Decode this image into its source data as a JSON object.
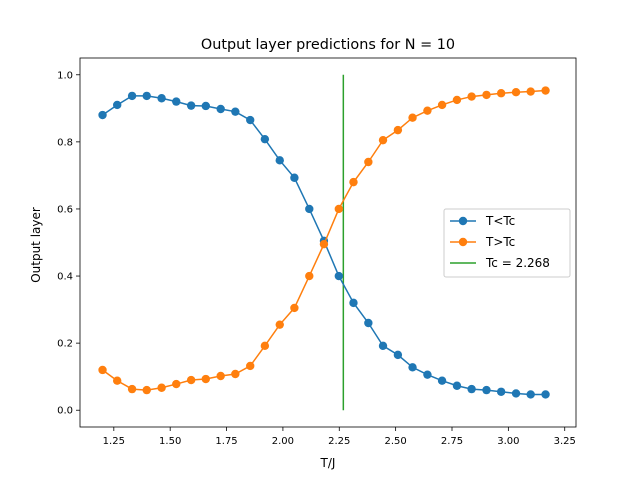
{
  "chart_data": {
    "type": "line",
    "title": "Output layer predictions for N = 10",
    "xlabel": "T/J",
    "ylabel": "Output layer",
    "xlim": [
      1.1,
      3.3
    ],
    "ylim": [
      -0.05,
      1.05
    ],
    "xticks": [
      1.25,
      1.5,
      1.75,
      2.0,
      2.25,
      2.5,
      2.75,
      3.0,
      3.25
    ],
    "xtick_labels": [
      "1.25",
      "1.50",
      "1.75",
      "2.00",
      "2.25",
      "2.50",
      "2.75",
      "3.00",
      "3.25"
    ],
    "yticks": [
      0.0,
      0.2,
      0.4,
      0.6,
      0.8,
      1.0
    ],
    "ytick_labels": [
      "0.0",
      "0.2",
      "0.4",
      "0.6",
      "0.8",
      "1.0"
    ],
    "grid": false,
    "legend_position": "center-right",
    "x": [
      1.2,
      1.265,
      1.331,
      1.396,
      1.462,
      1.527,
      1.593,
      1.658,
      1.724,
      1.789,
      1.855,
      1.92,
      1.986,
      2.051,
      2.117,
      2.182,
      2.248,
      2.313,
      2.379,
      2.444,
      2.51,
      2.575,
      2.641,
      2.706,
      2.772,
      2.837,
      2.903,
      2.968,
      3.034,
      3.099,
      3.165
    ],
    "series": [
      {
        "name": "T<Tc",
        "color": "#1f77b4",
        "marker": "circle",
        "values": [
          0.88,
          0.91,
          0.937,
          0.937,
          0.93,
          0.92,
          0.908,
          0.907,
          0.898,
          0.89,
          0.865,
          0.808,
          0.745,
          0.693,
          0.6,
          0.505,
          0.4,
          0.32,
          0.26,
          0.192,
          0.165,
          0.128,
          0.106,
          0.088,
          0.073,
          0.063,
          0.06,
          0.055,
          0.05,
          0.047,
          0.047
        ]
      },
      {
        "name": "T>Tc",
        "color": "#ff7f0e",
        "marker": "circle",
        "values": [
          0.12,
          0.088,
          0.063,
          0.06,
          0.067,
          0.078,
          0.09,
          0.093,
          0.102,
          0.108,
          0.132,
          0.192,
          0.255,
          0.305,
          0.4,
          0.495,
          0.6,
          0.68,
          0.74,
          0.805,
          0.835,
          0.872,
          0.893,
          0.91,
          0.925,
          0.935,
          0.94,
          0.945,
          0.948,
          0.95,
          0.953
        ]
      }
    ],
    "vertical_line": {
      "name": "Tc = 2.268",
      "x": 2.268,
      "y_range": [
        0.0,
        1.0
      ],
      "color": "#2ca02c"
    }
  }
}
